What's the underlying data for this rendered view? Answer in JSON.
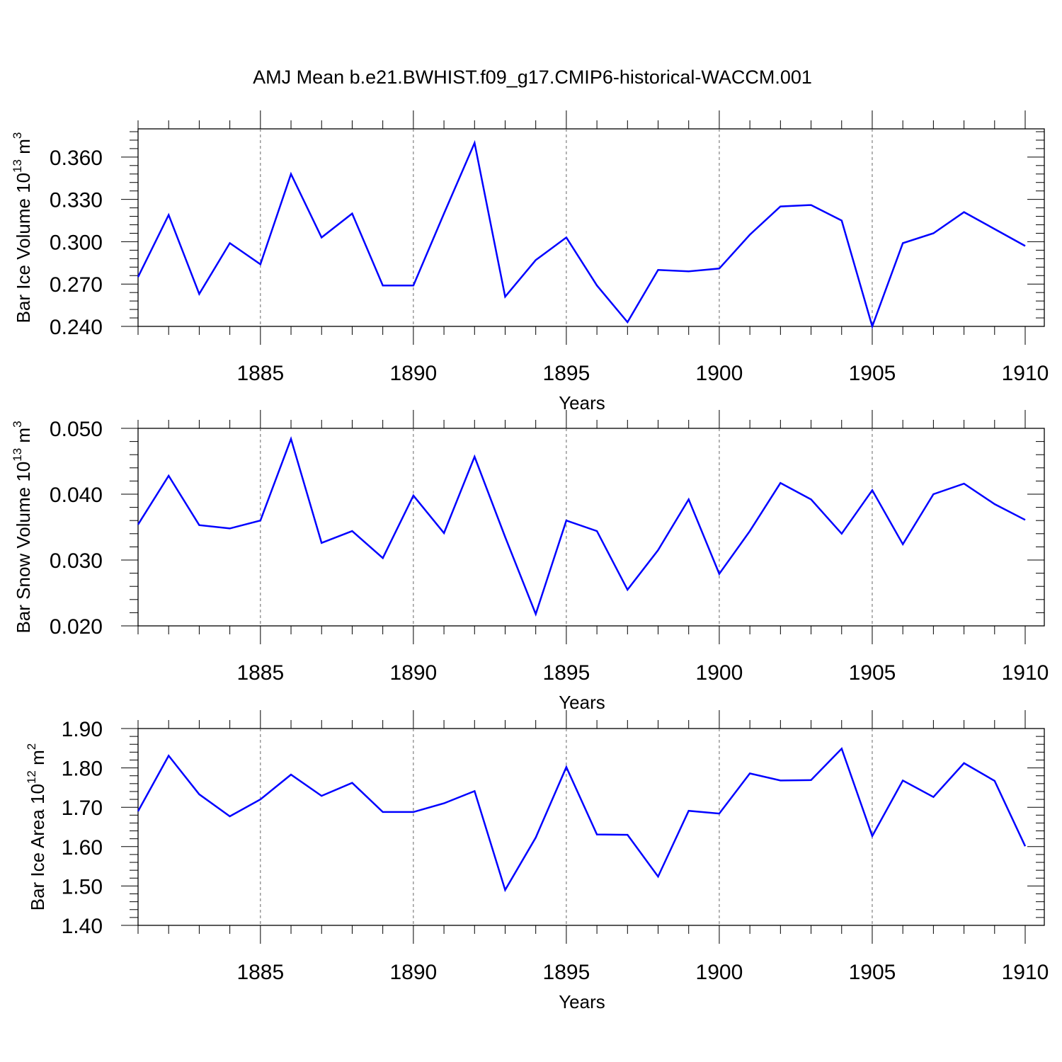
{
  "title": "AMJ Mean b.e21.BWHIST.f09_g17.CMIP6-historical-WACCM.001",
  "colors": {
    "line": "#0000ff",
    "axis": "#000000",
    "grid": "#000000"
  },
  "chart_data": [
    {
      "type": "line",
      "ylabel_main": "Bar Ice Volume 10",
      "ylabel_exp": "13",
      "ylabel_unit": " m",
      "ylabel_unit_exp": "3",
      "xlabel": "Years",
      "xlim": [
        1881,
        1910
      ],
      "ylim": [
        0.24,
        0.38
      ],
      "y_ticks": [
        "0.240",
        "0.270",
        "0.300",
        "0.330",
        "0.360"
      ],
      "y_tick_values": [
        0.24,
        0.27,
        0.3,
        0.33,
        0.36
      ],
      "x_ticks": [
        "1885",
        "1890",
        "1895",
        "1900",
        "1905",
        "1910"
      ],
      "x_tick_values": [
        1885,
        1890,
        1895,
        1900,
        1905,
        1910
      ],
      "grid_x": [
        1885,
        1890,
        1895,
        1900,
        1905
      ],
      "series": [
        {
          "x": [
            1881,
            1882,
            1883,
            1884,
            1885,
            1886,
            1887,
            1888,
            1889,
            1890,
            1891,
            1892,
            1893,
            1894,
            1895,
            1896,
            1897,
            1898,
            1899,
            1900,
            1901,
            1902,
            1903,
            1904,
            1905,
            1906,
            1907,
            1908,
            1909,
            1910
          ],
          "values": [
            0.275,
            0.319,
            0.263,
            0.299,
            0.284,
            0.348,
            0.303,
            0.32,
            0.269,
            0.269,
            0.32,
            0.37,
            0.261,
            0.287,
            0.303,
            0.269,
            0.243,
            0.28,
            0.279,
            0.281,
            0.305,
            0.325,
            0.326,
            0.315,
            0.24,
            0.299,
            0.306,
            0.321,
            0.309,
            0.297
          ]
        }
      ]
    },
    {
      "type": "line",
      "ylabel_main": "Bar Snow Volume 10",
      "ylabel_exp": "13",
      "ylabel_unit": " m",
      "ylabel_unit_exp": "3",
      "xlabel": "Years",
      "xlim": [
        1881,
        1910
      ],
      "ylim": [
        0.02,
        0.05
      ],
      "y_ticks": [
        "0.020",
        "0.030",
        "0.040",
        "0.050"
      ],
      "y_tick_values": [
        0.02,
        0.03,
        0.04,
        0.05
      ],
      "x_ticks": [
        "1885",
        "1890",
        "1895",
        "1900",
        "1905",
        "1910"
      ],
      "x_tick_values": [
        1885,
        1890,
        1895,
        1900,
        1905,
        1910
      ],
      "grid_x": [
        1885,
        1890,
        1895,
        1900,
        1905
      ],
      "series": [
        {
          "x": [
            1881,
            1882,
            1883,
            1884,
            1885,
            1886,
            1887,
            1888,
            1889,
            1890,
            1891,
            1892,
            1893,
            1894,
            1895,
            1896,
            1897,
            1898,
            1899,
            1900,
            1901,
            1902,
            1903,
            1904,
            1905,
            1906,
            1907,
            1908,
            1909,
            1910
          ],
          "values": [
            0.0354,
            0.0428,
            0.0353,
            0.0348,
            0.036,
            0.0484,
            0.0326,
            0.0344,
            0.0303,
            0.0398,
            0.0341,
            0.0457,
            0.0335,
            0.0218,
            0.036,
            0.0344,
            0.0255,
            0.0315,
            0.0392,
            0.0279,
            0.0344,
            0.0417,
            0.0392,
            0.034,
            0.0406,
            0.0324,
            0.04,
            0.0416,
            0.0385,
            0.0361
          ]
        }
      ]
    },
    {
      "type": "line",
      "ylabel_main": "Bar Ice Area 10",
      "ylabel_exp": "12",
      "ylabel_unit": " m",
      "ylabel_unit_exp": "2",
      "xlabel": "Years",
      "xlim": [
        1881,
        1910
      ],
      "ylim": [
        1.4,
        1.9
      ],
      "y_ticks": [
        "1.40",
        "1.50",
        "1.60",
        "1.70",
        "1.80",
        "1.90"
      ],
      "y_tick_values": [
        1.4,
        1.5,
        1.6,
        1.7,
        1.8,
        1.9
      ],
      "x_ticks": [
        "1885",
        "1890",
        "1895",
        "1900",
        "1905",
        "1910"
      ],
      "x_tick_values": [
        1885,
        1890,
        1895,
        1900,
        1905,
        1910
      ],
      "grid_x": [
        1885,
        1890,
        1895,
        1900,
        1905
      ],
      "series": [
        {
          "x": [
            1881,
            1882,
            1883,
            1884,
            1885,
            1886,
            1887,
            1888,
            1889,
            1890,
            1891,
            1892,
            1893,
            1894,
            1895,
            1896,
            1897,
            1898,
            1899,
            1900,
            1901,
            1902,
            1903,
            1904,
            1905,
            1906,
            1907,
            1908,
            1909,
            1910
          ],
          "values": [
            1.69,
            1.831,
            1.733,
            1.677,
            1.72,
            1.783,
            1.729,
            1.762,
            1.688,
            1.688,
            1.71,
            1.741,
            1.49,
            1.623,
            1.802,
            1.631,
            1.63,
            1.524,
            1.691,
            1.684,
            1.786,
            1.768,
            1.769,
            1.849,
            1.627,
            1.768,
            1.726,
            1.812,
            1.767,
            1.601
          ]
        }
      ]
    }
  ]
}
